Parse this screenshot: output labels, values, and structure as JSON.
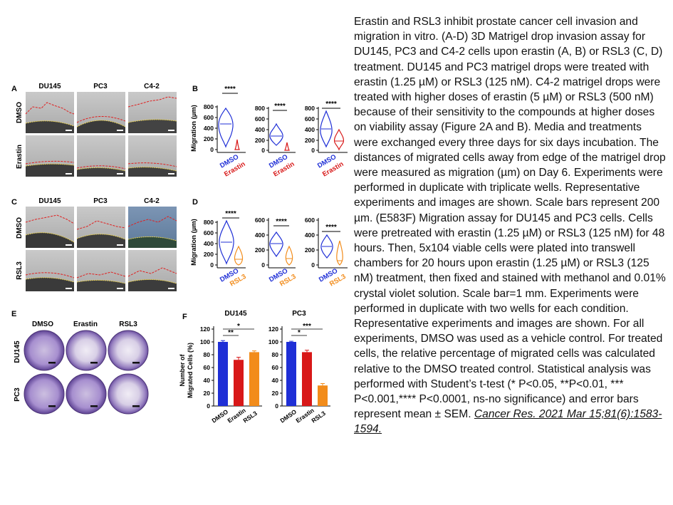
{
  "figure": {
    "panel_labels": {
      "a": "A",
      "b": "B",
      "c": "C",
      "d": "D",
      "e": "E",
      "f": "F"
    },
    "cell_lines": [
      "DU145",
      "PC3",
      "C4-2"
    ],
    "row_labels": {
      "dmso": "DMSO",
      "erastin": "Erastin",
      "rsl3": "RSL3"
    },
    "colors": {
      "dmso": "#1f2fd6",
      "erastin": "#d81818",
      "rsl3": "#f28c1b",
      "edge_line": "#e02020",
      "matrigel_edge": "#e8d050"
    },
    "panel_b": {
      "ylabel": "Migration (µm)",
      "significance": "****",
      "categories": [
        "DMSO",
        "Erastin"
      ],
      "plots": [
        {
          "ticks": [
            "800",
            "600",
            "400",
            "200",
            "0"
          ]
        },
        {
          "ticks": [
            "800",
            "600",
            "400",
            "200",
            "0"
          ]
        },
        {
          "ticks": [
            "800",
            "600",
            "400",
            "200",
            "0"
          ]
        }
      ]
    },
    "panel_d": {
      "ylabel": "Migration (µm)",
      "significance": "****",
      "categories": [
        "DMSO",
        "RSL3"
      ],
      "plots": [
        {
          "ticks": [
            "800",
            "600",
            "400",
            "200",
            "0"
          ]
        },
        {
          "ticks": [
            "600",
            "400",
            "200",
            "0"
          ]
        },
        {
          "ticks": [
            "600",
            "400",
            "200",
            "0"
          ]
        }
      ]
    },
    "panel_e": {
      "columns": [
        "DMSO",
        "Erastin",
        "RSL3"
      ],
      "rows": [
        "DU145",
        "PC3"
      ]
    },
    "panel_f": {
      "ylabel_line1": "Number of",
      "ylabel_line2": "Migrated Cells (%)"
    }
  },
  "chart_data": [
    {
      "type": "bar",
      "title": "DU145",
      "ylabel": "Number of Migrated Cells (%)",
      "categories": [
        "DMSO",
        "Erastin",
        "RSL3"
      ],
      "values": [
        100,
        72,
        84
      ],
      "errors": [
        2,
        4,
        2
      ],
      "ylim": [
        0,
        120
      ],
      "yticks": [
        "120",
        "100",
        "80",
        "60",
        "40",
        "20",
        "0"
      ],
      "significance": [
        {
          "from": "DMSO",
          "to": "RSL3",
          "label": "*"
        },
        {
          "from": "DMSO",
          "to": "Erastin",
          "label": "**"
        }
      ]
    },
    {
      "type": "bar",
      "title": "PC3",
      "ylabel": "Number of Migrated Cells (%)",
      "categories": [
        "DMSO",
        "Erastin",
        "RSL3"
      ],
      "values": [
        100,
        84,
        32
      ],
      "errors": [
        1,
        3,
        3
      ],
      "ylim": [
        0,
        120
      ],
      "yticks": [
        "120",
        "100",
        "80",
        "60",
        "40",
        "20",
        "0"
      ],
      "significance": [
        {
          "from": "DMSO",
          "to": "RSL3",
          "label": "***"
        },
        {
          "from": "DMSO",
          "to": "Erastin",
          "label": "*"
        }
      ]
    }
  ],
  "caption": {
    "text": "Erastin and RSL3 inhibit prostate cancer cell invasion and migration in vitro. (A-D) 3D Matrigel drop invasion assay for DU145, PC3 and C4-2 cells upon erastin (A, B) or RSL3 (C, D) treatment. DU145 and PC3 matrigel drops were treated with erastin (1.25 µM) or RSL3 (125 nM). C4-2 matrigel drops were treated with higher doses of erastin (5 µM) or RSL3 (500 nM) because of their sensitivity to the compounds at higher doses on viability assay (Figure 2A and B). Media and treatments were exchanged every three days for six days incubation. The distances of migrated cells away from edge of the matrigel drop were measured as migration (µm) on Day 6. Experiments were performed in duplicate with triplicate wells. Representative experiments and images are shown. Scale bars represent 200 µm. (E583F) Migration assay for DU145 and PC3 cells. Cells were pretreated with erastin (1.25 µM) or RSL3 (125 nM) for 48 hours. Then, 5x104 viable cells were plated into transwell chambers for 20 hours upon erastin (1.25 µM) or RSL3 (125 nM) treatment, then fixed and stained with methanol and 0.01% crystal violet solution. Scale bar=1 mm. Experiments were performed in duplicate with two wells for each condition. Representative experiments and images are shown. For all experiments, DMSO was used as a vehicle control. For treated cells, the relative percentage of migrated cells was calculated relative to the DMSO treated control. Statistical analysis was performed with Student’s t-test (* P<0.05, **P<0.01, *** P<0.001,**** P<0.0001, ns-no significance) and error bars represent mean ± SEM. ",
    "citation": "Cancer Res. 2021 Mar 15;81(6):1583-1594."
  }
}
